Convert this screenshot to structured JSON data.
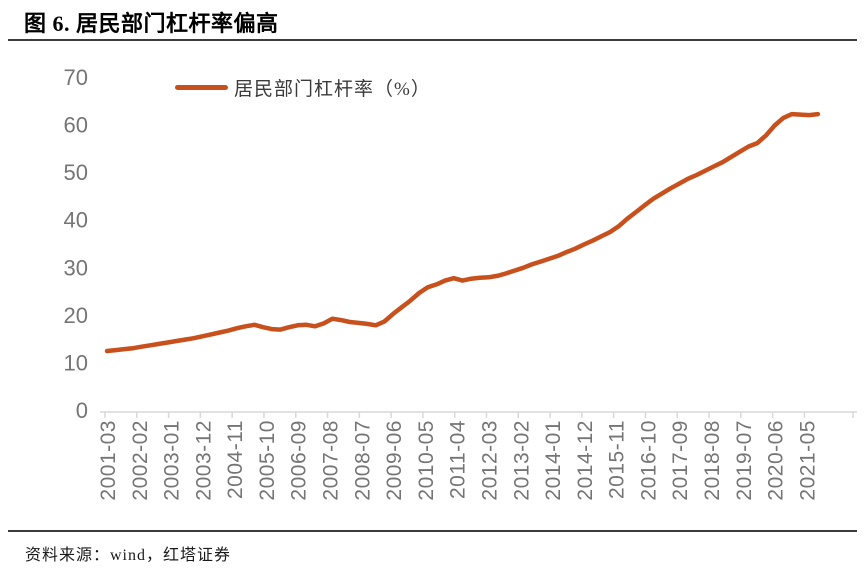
{
  "page": {
    "title": "图 6. 居民部门杠杆率偏高",
    "source": "资料来源：wind，红塔证券"
  },
  "colors": {
    "line": "#C8501D",
    "axis_label": "#757575",
    "axis_line": "#D9D9D9",
    "rule": "#3C3C3C",
    "title_text": "#000000"
  },
  "chart_data": {
    "type": "line",
    "title": "图 6. 居民部门杠杆率偏高",
    "xlabel": "",
    "ylabel": "",
    "ylim": [
      0,
      70
    ],
    "yticks": [
      0,
      10,
      20,
      30,
      40,
      50,
      60,
      70
    ],
    "grid": false,
    "legend_position": "top-left-inside",
    "x_tick_labels": [
      "2001-03",
      "2002-02",
      "2003-01",
      "2003-12",
      "2004-11",
      "2005-10",
      "2006-09",
      "2007-08",
      "2008-07",
      "2009-06",
      "2010-05",
      "2011-04",
      "2012-03",
      "2013-02",
      "2014-01",
      "2014-12",
      "2015-11",
      "2016-10",
      "2017-09",
      "2018-08",
      "2019-07",
      "2020-06",
      "2021-05"
    ],
    "x_tick_interval_months": 11,
    "series": [
      {
        "name": "居民部门杠杆率（%）",
        "color": "#C8501D",
        "points": [
          [
            "2001-03",
            12.4
          ],
          [
            "2001-06",
            12.6
          ],
          [
            "2001-09",
            12.8
          ],
          [
            "2001-12",
            13.0
          ],
          [
            "2002-03",
            13.3
          ],
          [
            "2002-06",
            13.6
          ],
          [
            "2002-09",
            13.9
          ],
          [
            "2002-12",
            14.2
          ],
          [
            "2003-03",
            14.5
          ],
          [
            "2003-06",
            14.8
          ],
          [
            "2003-09",
            15.1
          ],
          [
            "2003-12",
            15.5
          ],
          [
            "2004-03",
            15.9
          ],
          [
            "2004-06",
            16.3
          ],
          [
            "2004-09",
            16.7
          ],
          [
            "2004-12",
            17.2
          ],
          [
            "2005-03",
            17.6
          ],
          [
            "2005-06",
            17.9
          ],
          [
            "2005-09",
            17.4
          ],
          [
            "2005-12",
            17.0
          ],
          [
            "2006-03",
            16.9
          ],
          [
            "2006-06",
            17.4
          ],
          [
            "2006-09",
            17.8
          ],
          [
            "2006-12",
            17.9
          ],
          [
            "2007-03",
            17.6
          ],
          [
            "2007-06",
            18.2
          ],
          [
            "2007-09",
            19.2
          ],
          [
            "2007-12",
            18.9
          ],
          [
            "2008-03",
            18.5
          ],
          [
            "2008-06",
            18.3
          ],
          [
            "2008-09",
            18.1
          ],
          [
            "2008-12",
            17.8
          ],
          [
            "2009-03",
            18.6
          ],
          [
            "2009-06",
            20.2
          ],
          [
            "2009-09",
            21.6
          ],
          [
            "2009-12",
            23.0
          ],
          [
            "2010-03",
            24.6
          ],
          [
            "2010-06",
            25.8
          ],
          [
            "2010-09",
            26.4
          ],
          [
            "2010-12",
            27.2
          ],
          [
            "2011-03",
            27.7
          ],
          [
            "2011-06",
            27.2
          ],
          [
            "2011-09",
            27.6
          ],
          [
            "2011-12",
            27.8
          ],
          [
            "2012-03",
            27.9
          ],
          [
            "2012-06",
            28.2
          ],
          [
            "2012-09",
            28.7
          ],
          [
            "2012-12",
            29.3
          ],
          [
            "2013-03",
            29.9
          ],
          [
            "2013-06",
            30.6
          ],
          [
            "2013-09",
            31.2
          ],
          [
            "2013-12",
            31.8
          ],
          [
            "2014-03",
            32.4
          ],
          [
            "2014-06",
            33.2
          ],
          [
            "2014-09",
            33.9
          ],
          [
            "2014-12",
            34.8
          ],
          [
            "2015-03",
            35.6
          ],
          [
            "2015-06",
            36.5
          ],
          [
            "2015-09",
            37.4
          ],
          [
            "2015-12",
            38.6
          ],
          [
            "2016-03",
            40.2
          ],
          [
            "2016-06",
            41.6
          ],
          [
            "2016-09",
            43.0
          ],
          [
            "2016-12",
            44.4
          ],
          [
            "2017-03",
            45.5
          ],
          [
            "2017-06",
            46.6
          ],
          [
            "2017-09",
            47.6
          ],
          [
            "2017-12",
            48.6
          ],
          [
            "2018-03",
            49.4
          ],
          [
            "2018-06",
            50.3
          ],
          [
            "2018-09",
            51.2
          ],
          [
            "2018-12",
            52.1
          ],
          [
            "2019-03",
            53.2
          ],
          [
            "2019-06",
            54.3
          ],
          [
            "2019-09",
            55.4
          ],
          [
            "2019-12",
            56.1
          ],
          [
            "2020-03",
            57.7
          ],
          [
            "2020-06",
            59.8
          ],
          [
            "2020-09",
            61.4
          ],
          [
            "2020-12",
            62.2
          ],
          [
            "2021-03",
            62.1
          ],
          [
            "2021-06",
            62.0
          ],
          [
            "2021-09",
            62.2
          ]
        ]
      }
    ]
  }
}
